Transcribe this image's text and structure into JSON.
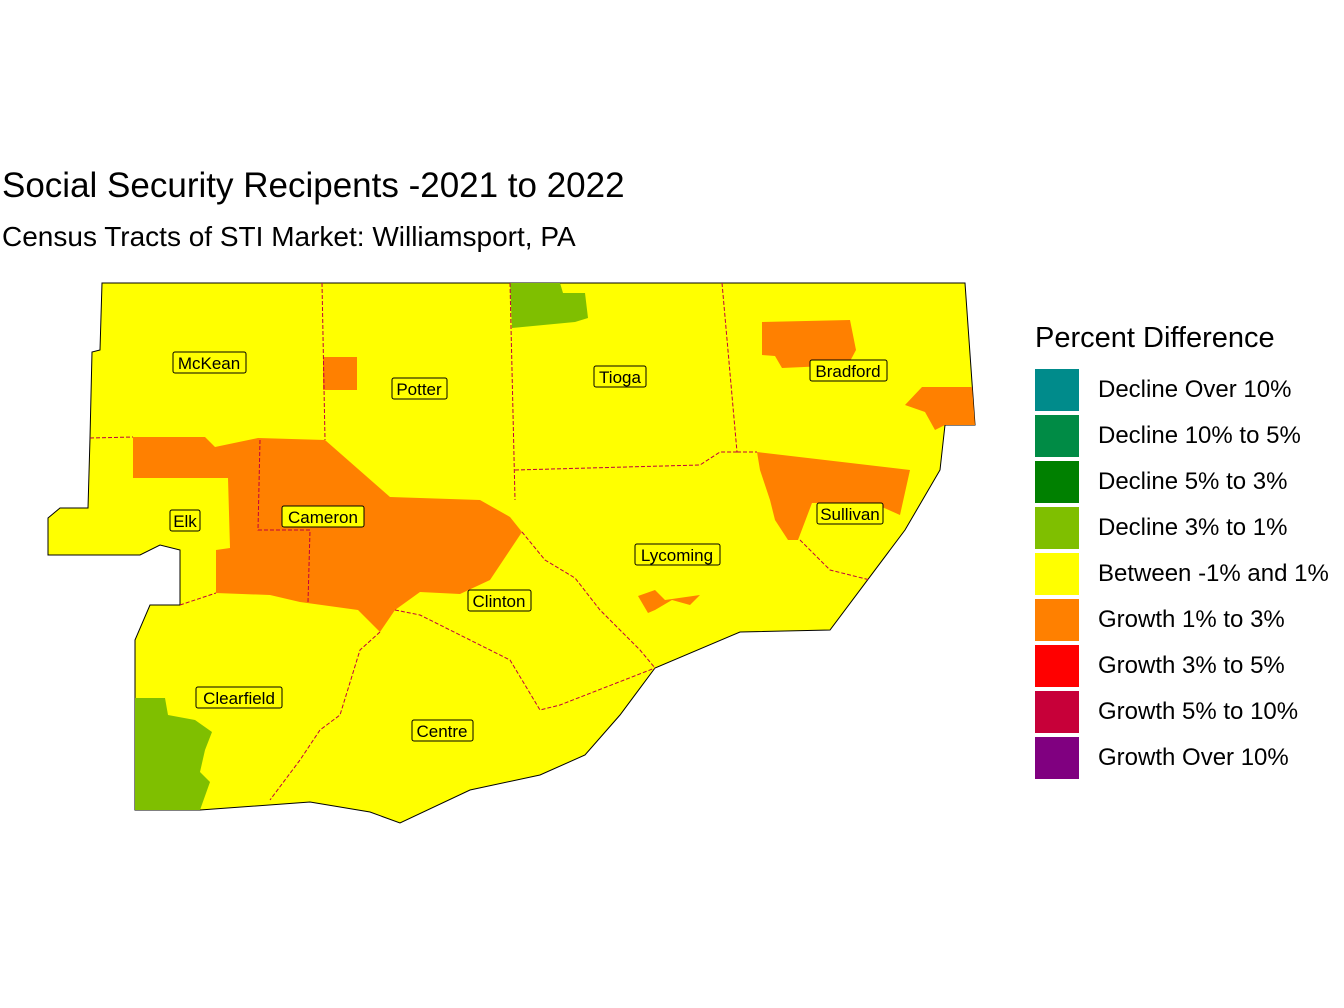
{
  "title": "Social Security Recipents -2021 to 2022",
  "subtitle": "Census Tracts of STI Market: Williamsport, PA",
  "legend": {
    "title": "Percent Difference",
    "items": [
      {
        "label": "Decline Over 10%",
        "color": "#008b8b"
      },
      {
        "label": "Decline 10% to 5%",
        "color": "#008b45"
      },
      {
        "label": "Decline 5% to 3%",
        "color": "#008000"
      },
      {
        "label": "Decline 3% to 1%",
        "color": "#7fbf00"
      },
      {
        "label": "Between -1% and 1%",
        "color": "#ffff00"
      },
      {
        "label": "Growth 1% to 3%",
        "color": "#ff8000"
      },
      {
        "label": "Growth 3% to 5%",
        "color": "#ff0000"
      },
      {
        "label": "Growth 5% to 10%",
        "color": "#c70039"
      },
      {
        "label": "Growth Over 10%",
        "color": "#800080"
      }
    ]
  },
  "counties": [
    {
      "name": "McKean"
    },
    {
      "name": "Potter"
    },
    {
      "name": "Tioga"
    },
    {
      "name": "Bradford"
    },
    {
      "name": "Elk"
    },
    {
      "name": "Cameron"
    },
    {
      "name": "Sullivan"
    },
    {
      "name": "Lycoming"
    },
    {
      "name": "Clinton"
    },
    {
      "name": "Clearfield"
    },
    {
      "name": "Centre"
    }
  ],
  "colors": {
    "border": "#c0003c",
    "outline": "#000000"
  }
}
